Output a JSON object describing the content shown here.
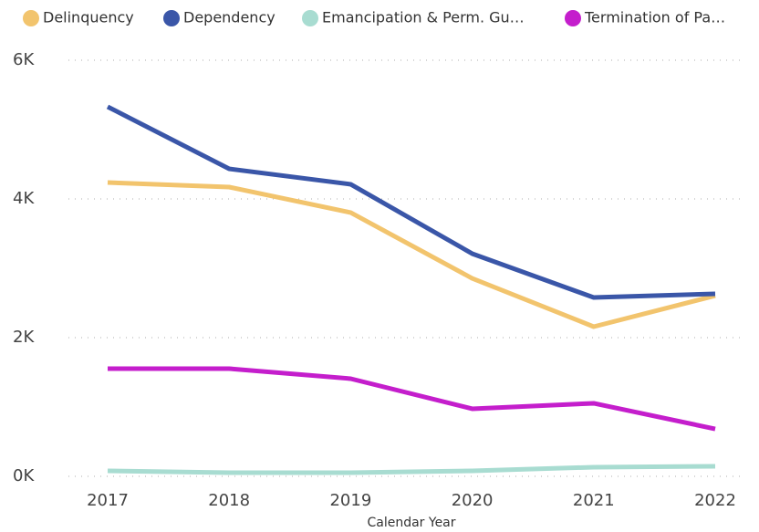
{
  "chart_data": {
    "type": "line",
    "x_label": "Calendar Year",
    "categories": [
      "2017",
      "2018",
      "2019",
      "2020",
      "2021",
      "2022"
    ],
    "series": [
      {
        "name": "Delinquency",
        "color": "#f2c46d",
        "values": [
          4237,
          4171,
          3803,
          2855,
          2158,
          2605
        ]
      },
      {
        "name": "Dependency",
        "color": "#3a56a8",
        "values": [
          5329,
          4434,
          4211,
          3211,
          2579,
          2632
        ]
      },
      {
        "name": "Emancipation & Perm. Gu…",
        "color": "#a8dcd1",
        "values": [
          79,
          53,
          53,
          79,
          132,
          145
        ]
      },
      {
        "name": "Termination of Pa…",
        "color": "#c41ecc",
        "values": [
          1553,
          1553,
          1408,
          974,
          1053,
          684
        ]
      }
    ],
    "ylim": [
      0,
      6000
    ],
    "yticks": [
      {
        "value": 0,
        "label": "0K"
      },
      {
        "value": 2000,
        "label": "2K"
      },
      {
        "value": 4000,
        "label": "4K"
      },
      {
        "value": 6000,
        "label": "6K"
      }
    ],
    "grid": true,
    "legend": "top"
  }
}
